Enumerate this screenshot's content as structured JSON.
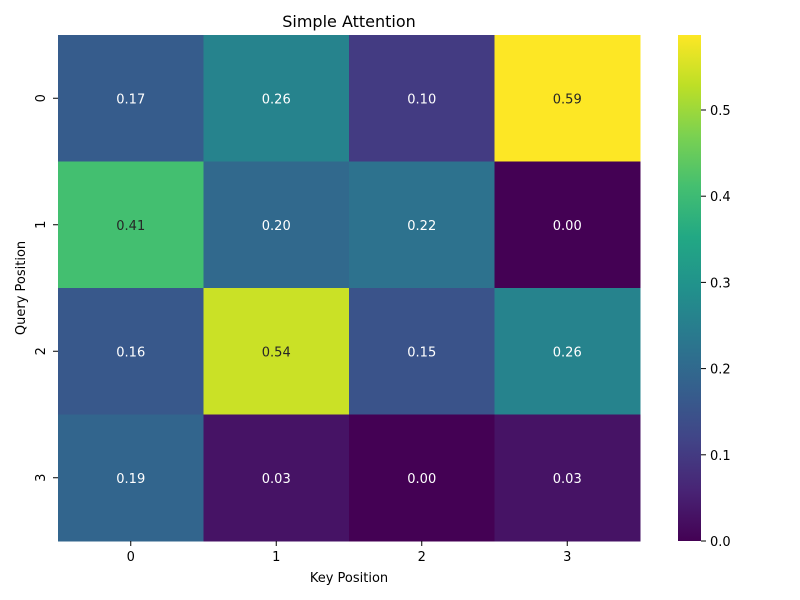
{
  "chart_data": {
    "type": "heatmap",
    "title": "Simple Attention",
    "xlabel": "Key Position",
    "ylabel": "Query Position",
    "x_categories": [
      "0",
      "1",
      "2",
      "3"
    ],
    "y_categories": [
      "0",
      "1",
      "2",
      "3"
    ],
    "values": [
      [
        0.17,
        0.26,
        0.1,
        0.59
      ],
      [
        0.41,
        0.2,
        0.22,
        0.0
      ],
      [
        0.16,
        0.54,
        0.15,
        0.26
      ],
      [
        0.19,
        0.03,
        0.0,
        0.03
      ]
    ],
    "annotations": [
      [
        "0.17",
        "0.26",
        "0.10",
        "0.59"
      ],
      [
        "0.41",
        "0.20",
        "0.22",
        "0.00"
      ],
      [
        "0.16",
        "0.54",
        "0.15",
        "0.26"
      ],
      [
        "0.19",
        "0.03",
        "0.00",
        "0.03"
      ]
    ],
    "colormap": "viridis",
    "color_range": [
      0.0,
      0.587
    ],
    "colorbar_ticks": [
      0.0,
      0.1,
      0.2,
      0.3,
      0.4,
      0.5
    ],
    "colorbar_tick_labels": [
      "0.0",
      "0.1",
      "0.2",
      "0.3",
      "0.4",
      "0.5"
    ],
    "grid": false
  }
}
